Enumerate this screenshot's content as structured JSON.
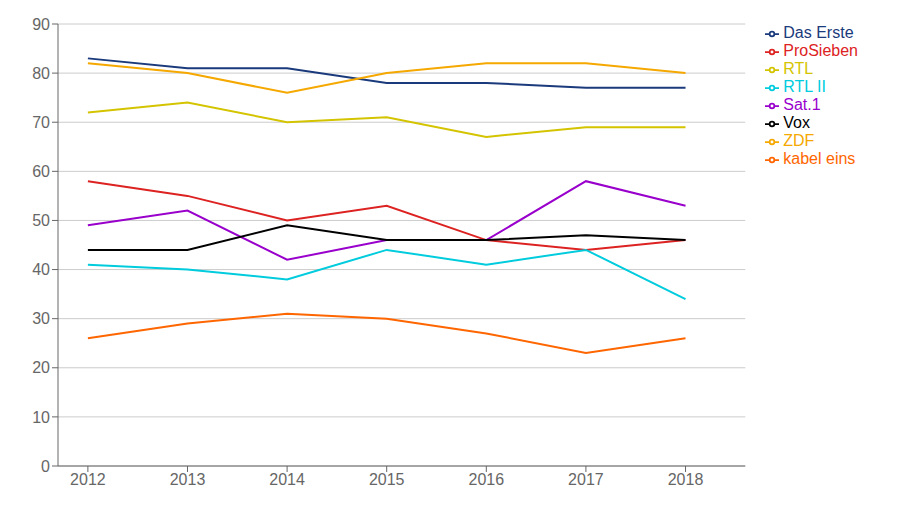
{
  "chart_data": {
    "type": "line",
    "x": [
      2012,
      2013,
      2014,
      2015,
      2016,
      2017,
      2018
    ],
    "series": [
      {
        "name": "Das Erste",
        "color": "#1a3a7c",
        "values": [
          83,
          81,
          81,
          78,
          78,
          77,
          77
        ]
      },
      {
        "name": "ZDF",
        "color": "#f5a800",
        "values": [
          82,
          80,
          76,
          80,
          82,
          82,
          80
        ]
      },
      {
        "name": "RTL",
        "color": "#d4c400",
        "values": [
          72,
          74,
          70,
          71,
          67,
          69,
          69
        ]
      },
      {
        "name": "Sat.1",
        "color": "#9900cc",
        "values": [
          49,
          52,
          42,
          46,
          46,
          58,
          53
        ]
      },
      {
        "name": "ProSieben",
        "color": "#dd2222",
        "values": [
          58,
          55,
          50,
          53,
          46,
          44,
          46
        ]
      },
      {
        "name": "Vox",
        "color": "#000000",
        "values": [
          44,
          44,
          49,
          46,
          46,
          47,
          46
        ]
      },
      {
        "name": "RTL II",
        "color": "#00ccdd",
        "values": [
          41,
          40,
          38,
          44,
          41,
          44,
          34
        ]
      },
      {
        "name": "kabel eins",
        "color": "#ff6600",
        "values": [
          26,
          29,
          31,
          30,
          27,
          23,
          26
        ]
      }
    ],
    "xlim": [
      2011.7,
      2018.6
    ],
    "ylim": [
      0,
      90
    ],
    "xticks": [
      2012,
      2013,
      2014,
      2015,
      2016,
      2017,
      2018
    ],
    "yticks": [
      0,
      10,
      20,
      30,
      40,
      50,
      60,
      70,
      80,
      90
    ],
    "grid": true,
    "legend": "right"
  }
}
